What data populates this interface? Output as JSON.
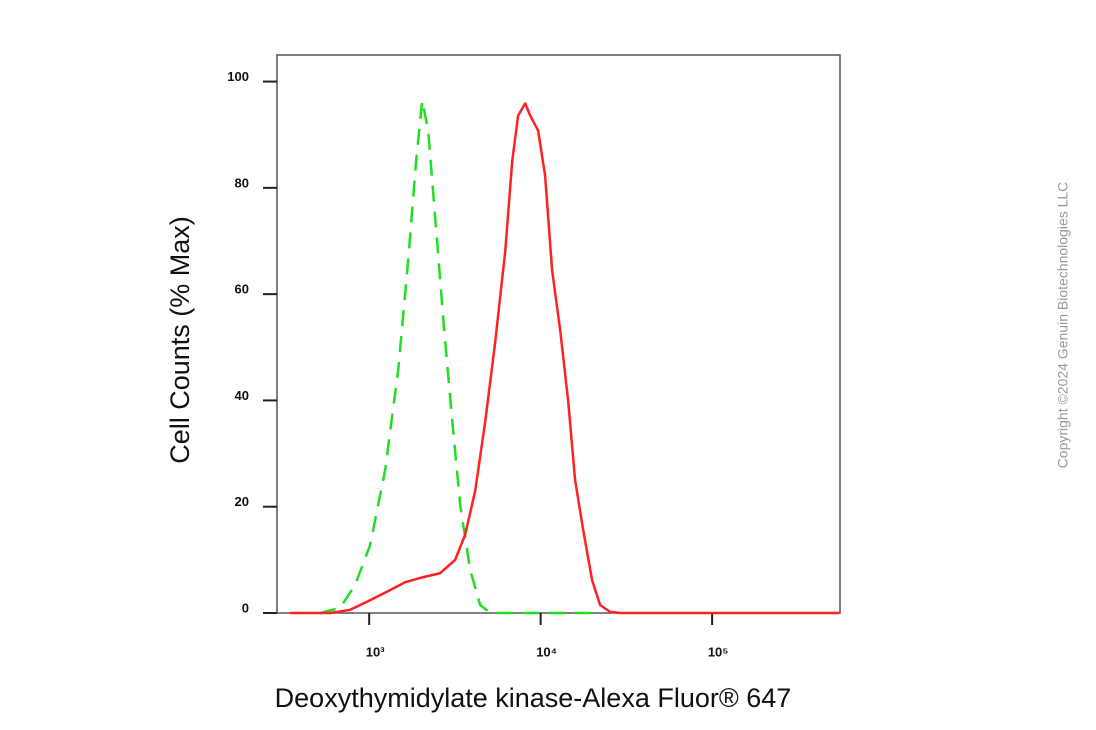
{
  "chart_data": {
    "type": "line",
    "y_label": "Cell Counts (% Max)",
    "x_label": "Deoxythymidylate kinase-Alexa Fluor® 647",
    "watermark": "Copyright ©2024 Genuin Biotechnologies LLC",
    "log_x": true,
    "xlim": [
      290,
      557000
    ],
    "ylim": [
      0,
      105
    ],
    "xticks": [
      {
        "value": 1000,
        "label": "10³"
      },
      {
        "value": 10000,
        "label": "10⁴"
      },
      {
        "value": 100000,
        "label": "10⁵"
      }
    ],
    "yticks": [
      0,
      20,
      40,
      60,
      80,
      100
    ],
    "series": [
      {
        "color": "#22dd22",
        "dashed": true,
        "x": [
          518,
          678,
          829,
          1013,
          1240,
          1476,
          1688,
          1880,
          2037,
          2208,
          2460,
          2737,
          3048,
          3395,
          3882,
          4439,
          5076,
          22000
        ],
        "values": [
          0,
          1,
          5.3,
          12.8,
          26.9,
          45.7,
          66.4,
          85.2,
          96.4,
          90.8,
          72,
          53.2,
          36.3,
          20.3,
          8.1,
          1.5,
          0,
          0
        ]
      },
      {
        "color": "#ff2020",
        "dashed": false,
        "x": [
          346,
          593,
          775,
          1013,
          1325,
          1622,
          1984,
          2594,
          3171,
          3628,
          4150,
          4747,
          5430,
          6210,
          6823,
          7392,
          8128,
          8690,
          9670,
          10620,
          11670,
          13000,
          14460,
          15890,
          17700,
          19960,
          22230,
          25420,
          29080,
          550000
        ],
        "values": [
          0,
          0,
          0.6,
          2.4,
          4.3,
          5.8,
          6.6,
          7.5,
          10,
          14.7,
          23,
          36,
          51,
          68,
          85,
          93.6,
          95.9,
          93.6,
          90.8,
          82.3,
          64.5,
          53.2,
          40,
          25,
          15.6,
          6.2,
          1.5,
          0.2,
          0,
          0
        ]
      }
    ]
  }
}
